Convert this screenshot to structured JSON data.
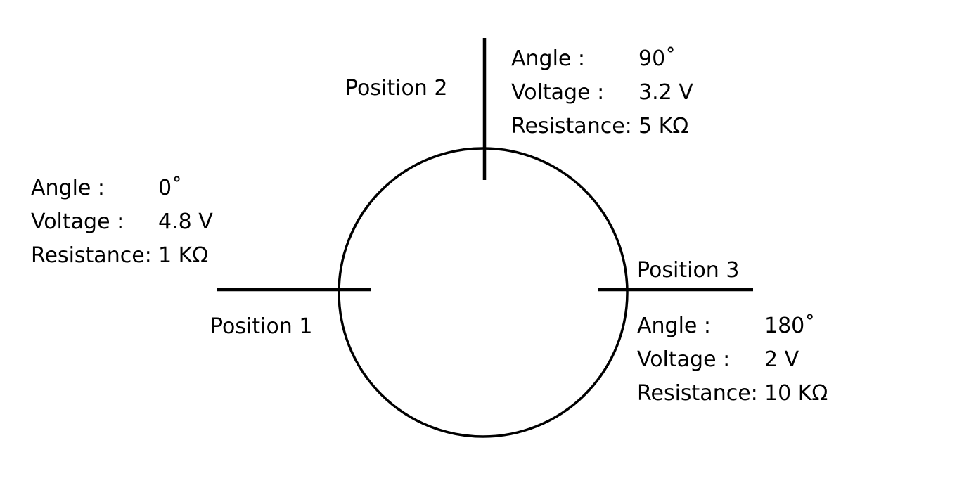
{
  "diagram": {
    "positions": [
      {
        "label": "Position 1",
        "angle_label": "Angle :",
        "angle_value": "0˚",
        "voltage_label": "Voltage :",
        "voltage_value": "4.8 V",
        "resistance_label": "Resistance:",
        "resistance_value": "1 KΩ"
      },
      {
        "label": "Position 2",
        "angle_label": "Angle :",
        "angle_value": "90˚",
        "voltage_label": "Voltage :",
        "voltage_value": "3.2 V",
        "resistance_label": "Resistance:",
        "resistance_value": "5 KΩ"
      },
      {
        "label": "Position 3",
        "angle_label": "Angle :",
        "angle_value": "180˚",
        "voltage_label": "Voltage :",
        "voltage_value": "2 V",
        "resistance_label": "Resistance:",
        "resistance_value": "10 KΩ"
      }
    ],
    "colors": {
      "stroke": "#000000",
      "background": "#ffffff"
    }
  }
}
